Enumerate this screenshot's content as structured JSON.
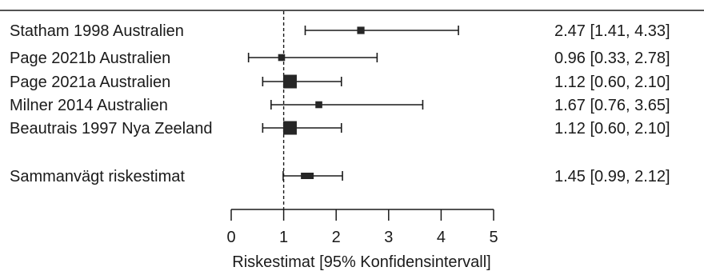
{
  "chart_data": {
    "type": "forest",
    "xlabel": "Riskestimat [95% Konfidensintervall]",
    "xlim": [
      0,
      5
    ],
    "xticks": [
      "0",
      "1",
      "2",
      "3",
      "4",
      "5"
    ],
    "reference_line": 1,
    "studies": [
      {
        "label": "Statham 1998 Australien",
        "estimate": 2.47,
        "lower": 1.41,
        "upper": 4.33,
        "ci_text": "2.47 [1.41, 4.33]",
        "weight": 0.35
      },
      {
        "label": "Page 2021b Australien",
        "estimate": 0.96,
        "lower": 0.33,
        "upper": 2.78,
        "ci_text": "0.96 [0.33, 2.78]",
        "weight": 0.3
      },
      {
        "label": "Page 2021a Australien",
        "estimate": 1.12,
        "lower": 0.6,
        "upper": 2.1,
        "ci_text": "1.12 [0.60, 2.10]",
        "weight": 1.0
      },
      {
        "label": "Milner 2014 Australien",
        "estimate": 1.67,
        "lower": 0.76,
        "upper": 3.65,
        "ci_text": "1.67 [0.76, 3.65]",
        "weight": 0.3
      },
      {
        "label": "Beautrais 1997 Nya Zeeland",
        "estimate": 1.12,
        "lower": 0.6,
        "upper": 2.1,
        "ci_text": "1.12 [0.60, 2.10]",
        "weight": 1.0
      }
    ],
    "summary": {
      "label": "Sammanvägt riskestimat",
      "estimate": 1.45,
      "lower": 0.99,
      "upper": 2.12,
      "ci_text": "1.45 [0.99, 2.12]"
    }
  }
}
